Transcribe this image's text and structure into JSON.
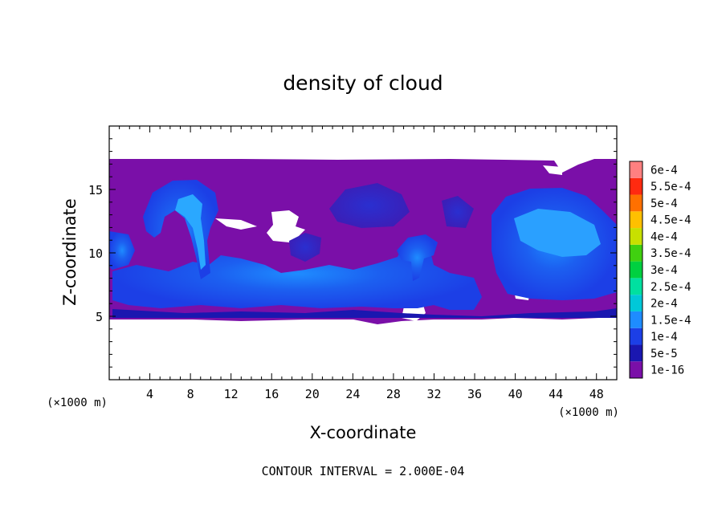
{
  "chart_data": {
    "type": "heatmap",
    "title": "density of cloud",
    "xlabel": "X-coordinate",
    "ylabel": "Z-coordinate",
    "x_unit": "(×1000 m)",
    "x_unit_right": "(×1000 m)",
    "xlim": [
      0,
      50
    ],
    "ylim": [
      0,
      20
    ],
    "x_ticks": [
      4,
      8,
      12,
      16,
      20,
      24,
      28,
      32,
      36,
      40,
      44,
      48
    ],
    "y_ticks": [
      5,
      10,
      15
    ],
    "contour_interval": "CONTOUR INTERVAL = 2.000E-04",
    "colorbar": {
      "levels": [
        "1e-16",
        "5e-5",
        "1e-4",
        "1.5e-4",
        "2e-4",
        "2.5e-4",
        "3e-4",
        "3.5e-4",
        "4e-4",
        "4.5e-4",
        "5e-4",
        "5.5e-4",
        "6e-4"
      ],
      "colors": [
        "#7a0fa8",
        "#1a17b0",
        "#1c3fe6",
        "#1e8cff",
        "#00c8d8",
        "#00e0a0",
        "#00d040",
        "#40d010",
        "#c8e000",
        "#ffc000",
        "#ff7000",
        "#ff2a10",
        "#ff8080"
      ]
    },
    "cloud_layer": {
      "z_bottom": 5,
      "z_top": 17.2,
      "background_level": "1e-16",
      "max_level_shown": "1.5e-4"
    }
  }
}
